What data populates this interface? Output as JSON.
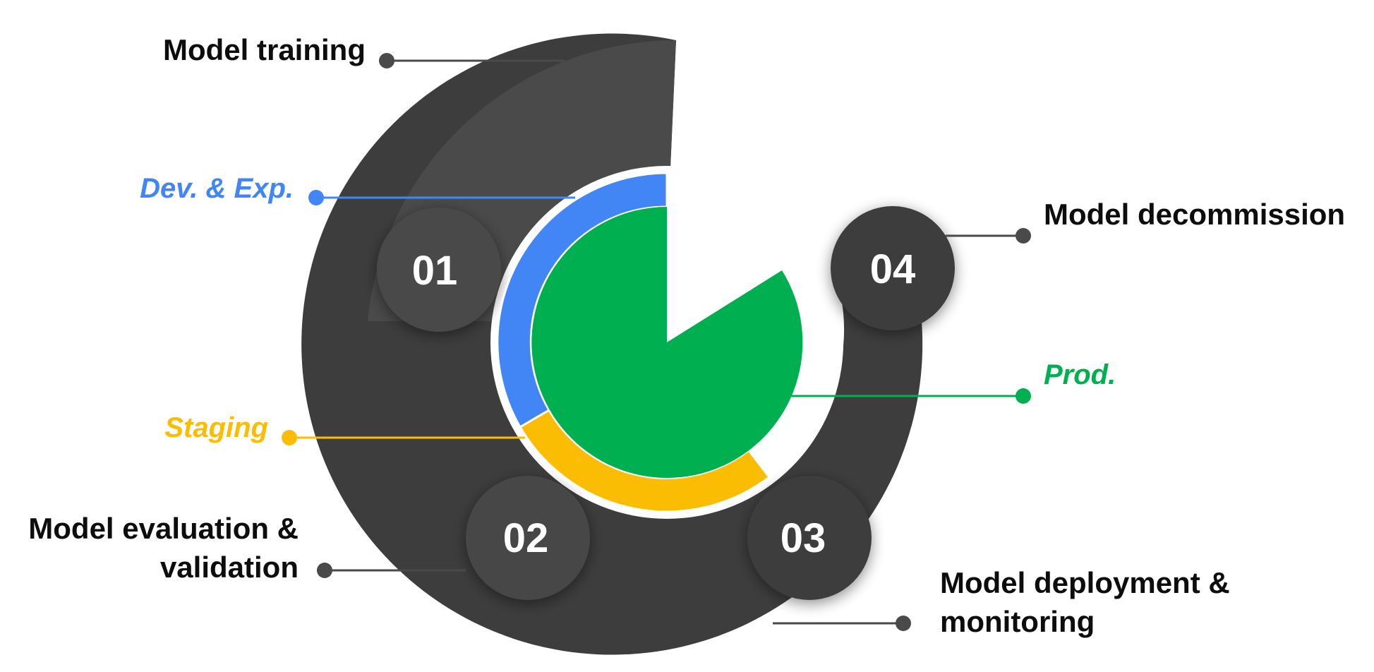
{
  "diagram": {
    "steps": [
      {
        "number": "01",
        "label_lines": [
          "Model training"
        ]
      },
      {
        "number": "02",
        "label_lines": [
          "Model evaluation &",
          "validation"
        ]
      },
      {
        "number": "03",
        "label_lines": [
          "Model deployment &",
          "monitoring"
        ]
      },
      {
        "number": "04",
        "label_lines": [
          "Model decommission"
        ]
      }
    ],
    "stages": [
      {
        "label": "Dev. & Exp.",
        "color": "#4285f4"
      },
      {
        "label": "Staging",
        "color": "#fbbc04"
      },
      {
        "label": "Prod.",
        "color": "#00b050"
      }
    ],
    "colors": {
      "ring_dark": "#3d3d3d",
      "ring_mid": "#4a4a4a",
      "connector": "#4a4a4a"
    }
  }
}
